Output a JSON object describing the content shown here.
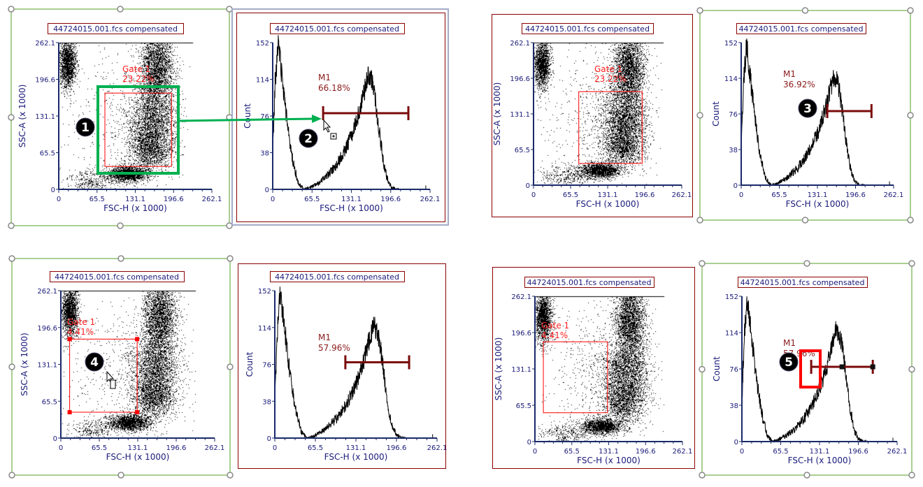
{
  "colors": {
    "axis": "#1a2a6a",
    "text": "#1a1a7a",
    "frame": "#8b0000",
    "selection": "#a9cf92",
    "selection_alt": "#a3acc8",
    "gate": "#ff0000",
    "marker": "#7a0a0a",
    "highlight_green": "#00b050",
    "highlight_red": "#ff0000"
  },
  "scatter_ticks": [
    "0",
    "65.5",
    "131.1",
    "196.6",
    "262.1"
  ],
  "count_ticks": [
    "0",
    "38",
    "76",
    "114",
    "152"
  ],
  "panels": [
    {
      "kind": "dot",
      "title": "44724015.001.fcs compensated",
      "xlabel": "FSC-H (x 1000)",
      "ylabel": "SSC-A (x 1000)",
      "gate": {
        "label": "Gate 1",
        "pct": "23.22%",
        "fsc": [
          79,
          193
        ],
        "ssc": [
          41,
          172
        ]
      },
      "selected": true
    },
    {
      "kind": "hist",
      "title": "44724015.001.fcs compensated",
      "xlabel": "FSC-H (x 1000)",
      "ylabel": "Count",
      "marker": {
        "label": "M1",
        "pct": "66.18%",
        "fsc": [
          84,
          226
        ]
      }
    },
    {
      "kind": "dot",
      "title": "44724015.001.fcs compensated",
      "xlabel": "FSC-H (x 1000)",
      "ylabel": "SSC-A (x 1000)",
      "gate": {
        "label": "Gate 1",
        "pct": "23.22%",
        "fsc": [
          80,
          192
        ],
        "ssc": [
          40,
          172
        ]
      }
    },
    {
      "kind": "hist",
      "title": "44724015.001.fcs compensated",
      "xlabel": "FSC-H (x 1000)",
      "ylabel": "Count",
      "marker": {
        "label": "M1",
        "pct": "36.92%",
        "fsc": [
          148,
          224
        ]
      },
      "selected": true
    },
    {
      "kind": "dot",
      "title": "44724015.001.fcs compensated",
      "xlabel": "FSC-H (x 1000)",
      "ylabel": "SSC-A (x 1000)",
      "gate": {
        "label": "Gate 1",
        "pct": "4.41%",
        "fsc": [
          15,
          130
        ],
        "ssc": [
          46,
          176
        ]
      },
      "selected": true
    },
    {
      "kind": "hist",
      "title": "44724015.001.fcs compensated",
      "xlabel": "FSC-H (x 1000)",
      "ylabel": "Count",
      "marker": {
        "label": "M1",
        "pct": "57.96%",
        "fsc": [
          114,
          217
        ]
      }
    },
    {
      "kind": "dot",
      "title": "44724015.001.fcs compensated",
      "xlabel": "FSC-H (x 1000)",
      "ylabel": "SSC-A (x 1000)",
      "gate": {
        "label": "Gate 1",
        "pct": "4.41%",
        "fsc": [
          15,
          129
        ],
        "ssc": [
          52,
          180
        ]
      }
    },
    {
      "kind": "hist",
      "title": "44724015.001.fcs compensated",
      "xlabel": "FSC-H (x 1000)",
      "ylabel": "Count",
      "marker": {
        "label": "M1",
        "pct": "57.96%",
        "fsc": [
          117,
          221
        ]
      },
      "selected": true
    }
  ],
  "histogram_shape": [
    [
      0,
      40
    ],
    [
      4,
      110
    ],
    [
      9,
      150
    ],
    [
      14,
      125
    ],
    [
      20,
      90
    ],
    [
      27,
      55
    ],
    [
      35,
      25
    ],
    [
      43,
      6
    ],
    [
      52,
      0
    ],
    [
      62,
      2
    ],
    [
      75,
      6
    ],
    [
      90,
      14
    ],
    [
      105,
      24
    ],
    [
      120,
      40
    ],
    [
      133,
      58
    ],
    [
      143,
      78
    ],
    [
      152,
      100
    ],
    [
      160,
      118
    ],
    [
      166,
      110
    ],
    [
      172,
      88
    ],
    [
      178,
      58
    ],
    [
      184,
      30
    ],
    [
      190,
      12
    ],
    [
      197,
      3
    ],
    [
      205,
      0
    ],
    [
      262.1,
      0
    ]
  ],
  "annotations": [
    "1",
    "2",
    "3",
    "4",
    "5"
  ]
}
